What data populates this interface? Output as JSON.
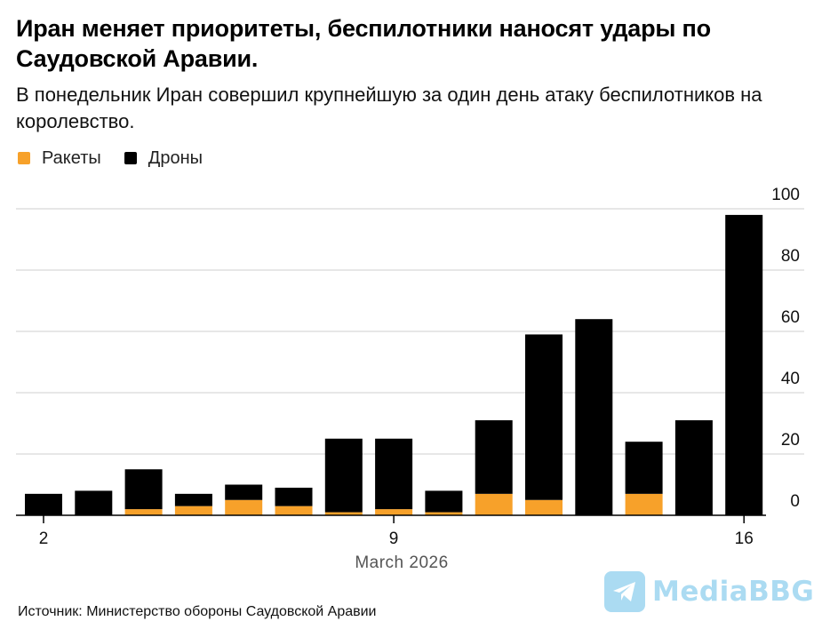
{
  "header": {
    "title": "Иран меняет приоритеты, беспилотники наносят удары по Саудовской Аравии.",
    "subtitle": "В понедельник Иран совершил крупнейшую за один день атаку беспилотников на королевство."
  },
  "legend": [
    {
      "label": "Ракеты",
      "color": "#f7a12a"
    },
    {
      "label": "Дроны",
      "color": "#000000"
    }
  ],
  "source": "Источник: Министерство обороны Саудовской Аравии",
  "watermark": "MediaBBG",
  "chart_data": {
    "type": "bar",
    "stacked": true,
    "title": "Иран меняет приоритеты, беспилотники наносят удары по Саудовской Аравии.",
    "xlabel": "March 2026",
    "ylabel": "",
    "ylim": [
      0,
      100
    ],
    "yticks": [
      0,
      20,
      40,
      60,
      80,
      100
    ],
    "grid": true,
    "legend_position": "top-left",
    "categories": [
      "2",
      "3",
      "4",
      "5",
      "6",
      "7",
      "8",
      "9",
      "10",
      "11",
      "12",
      "13",
      "14",
      "15",
      "16"
    ],
    "xtick_labels": [
      {
        "index": 0,
        "label": "2"
      },
      {
        "index": 7,
        "label": "9"
      },
      {
        "index": 14,
        "label": "16"
      }
    ],
    "series": [
      {
        "name": "Ракеты",
        "color": "#f7a12a",
        "values": [
          0,
          0,
          2,
          3,
          5,
          3,
          1,
          2,
          1,
          7,
          5,
          0,
          7,
          0,
          0
        ]
      },
      {
        "name": "Дроны",
        "color": "#000000",
        "values": [
          7,
          8,
          13,
          4,
          5,
          6,
          24,
          23,
          7,
          24,
          54,
          64,
          17,
          31,
          98
        ]
      }
    ]
  }
}
